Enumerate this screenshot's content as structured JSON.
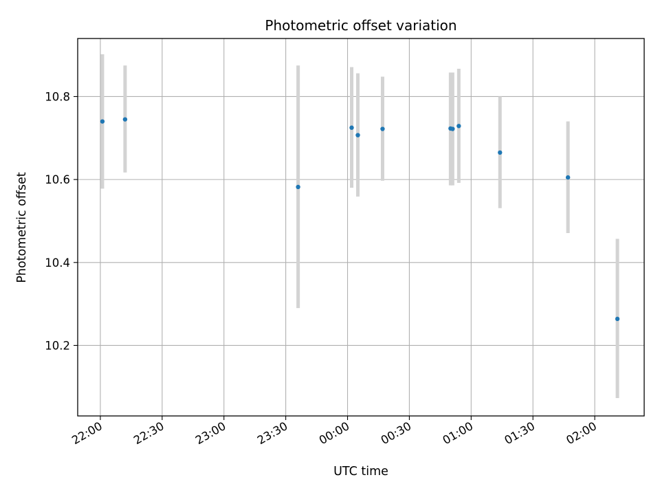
{
  "chart_data": {
    "type": "scatter",
    "title": "Photometric offset variation",
    "xlabel": "UTC time",
    "ylabel": "Photometric offset",
    "x_unit": "UTC time (HH:MM)",
    "x_ticks": [
      "22:00",
      "22:30",
      "23:00",
      "23:30",
      "00:00",
      "00:30",
      "01:00",
      "01:30",
      "02:00"
    ],
    "y_ticks": [
      10.2,
      10.4,
      10.6,
      10.8
    ],
    "xlim": [
      "21:49",
      "02:24"
    ],
    "ylim": [
      10.03,
      10.94
    ],
    "grid": true,
    "colors": {
      "points": "#1f77b4",
      "errorbars": "#d3d3d3",
      "grid": "#b0b0b0"
    },
    "points": [
      {
        "time": "22:01",
        "y": 10.74,
        "err_low": 10.578,
        "err_high": 10.902
      },
      {
        "time": "22:12",
        "y": 10.745,
        "err_low": 10.617,
        "err_high": 10.875
      },
      {
        "time": "23:36",
        "y": 10.582,
        "err_low": 10.29,
        "err_high": 10.875
      },
      {
        "time": "00:02",
        "y": 10.725,
        "err_low": 10.58,
        "err_high": 10.871
      },
      {
        "time": "00:05",
        "y": 10.707,
        "err_low": 10.559,
        "err_high": 10.856
      },
      {
        "time": "00:17",
        "y": 10.722,
        "err_low": 10.597,
        "err_high": 10.848
      },
      {
        "time": "00:50",
        "y": 10.723,
        "err_low": 10.586,
        "err_high": 10.858
      },
      {
        "time": "00:51",
        "y": 10.722,
        "err_low": 10.586,
        "err_high": 10.858
      },
      {
        "time": "00:54",
        "y": 10.729,
        "err_low": 10.592,
        "err_high": 10.867
      },
      {
        "time": "01:14",
        "y": 10.665,
        "err_low": 10.531,
        "err_high": 10.8
      },
      {
        "time": "01:47",
        "y": 10.605,
        "err_low": 10.471,
        "err_high": 10.74
      },
      {
        "time": "02:11",
        "y": 10.264,
        "err_low": 10.073,
        "err_high": 10.457
      }
    ]
  }
}
